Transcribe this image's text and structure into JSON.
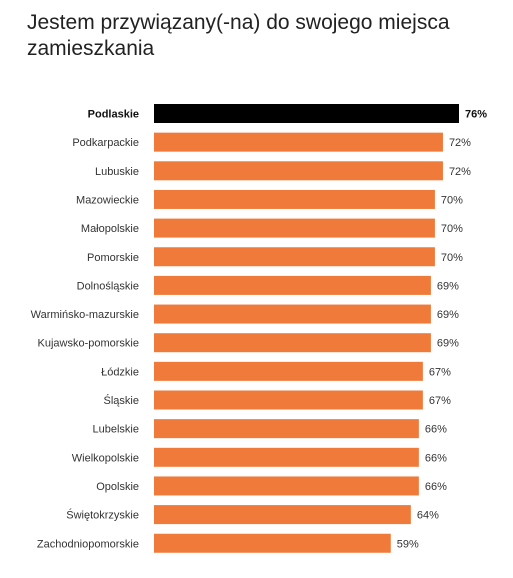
{
  "chart_data": {
    "type": "bar",
    "orientation": "horizontal",
    "title": "Jestem przywiązany(-na) do swojego miejsca zamieszkania",
    "categories": [
      "Podlaskie",
      "Podkarpackie",
      "Lubuskie",
      "Mazowieckie",
      "Małopolskie",
      "Pomorskie",
      "Dolnośląskie",
      "Warmińsko-mazurskie",
      "Kujawsko-pomorskie",
      "Łódzkie",
      "Śląskie",
      "Lubelskie",
      "Wielkopolskie",
      "Opolskie",
      "Świętokrzyskie",
      "Zachodniopomorskie"
    ],
    "values": [
      76,
      72,
      72,
      70,
      70,
      70,
      69,
      69,
      69,
      67,
      67,
      66,
      66,
      66,
      64,
      59
    ],
    "value_labels": [
      "76%",
      "72%",
      "72%",
      "70%",
      "70%",
      "70%",
      "69%",
      "69%",
      "69%",
      "67%",
      "67%",
      "66%",
      "66%",
      "66%",
      "64%",
      "59%"
    ],
    "highlight": "Podlaskie",
    "xlim": [
      0,
      76
    ],
    "grid": false,
    "legend": "none",
    "colors": {
      "bar": "#f07a3a",
      "highlight": "#000000"
    }
  }
}
